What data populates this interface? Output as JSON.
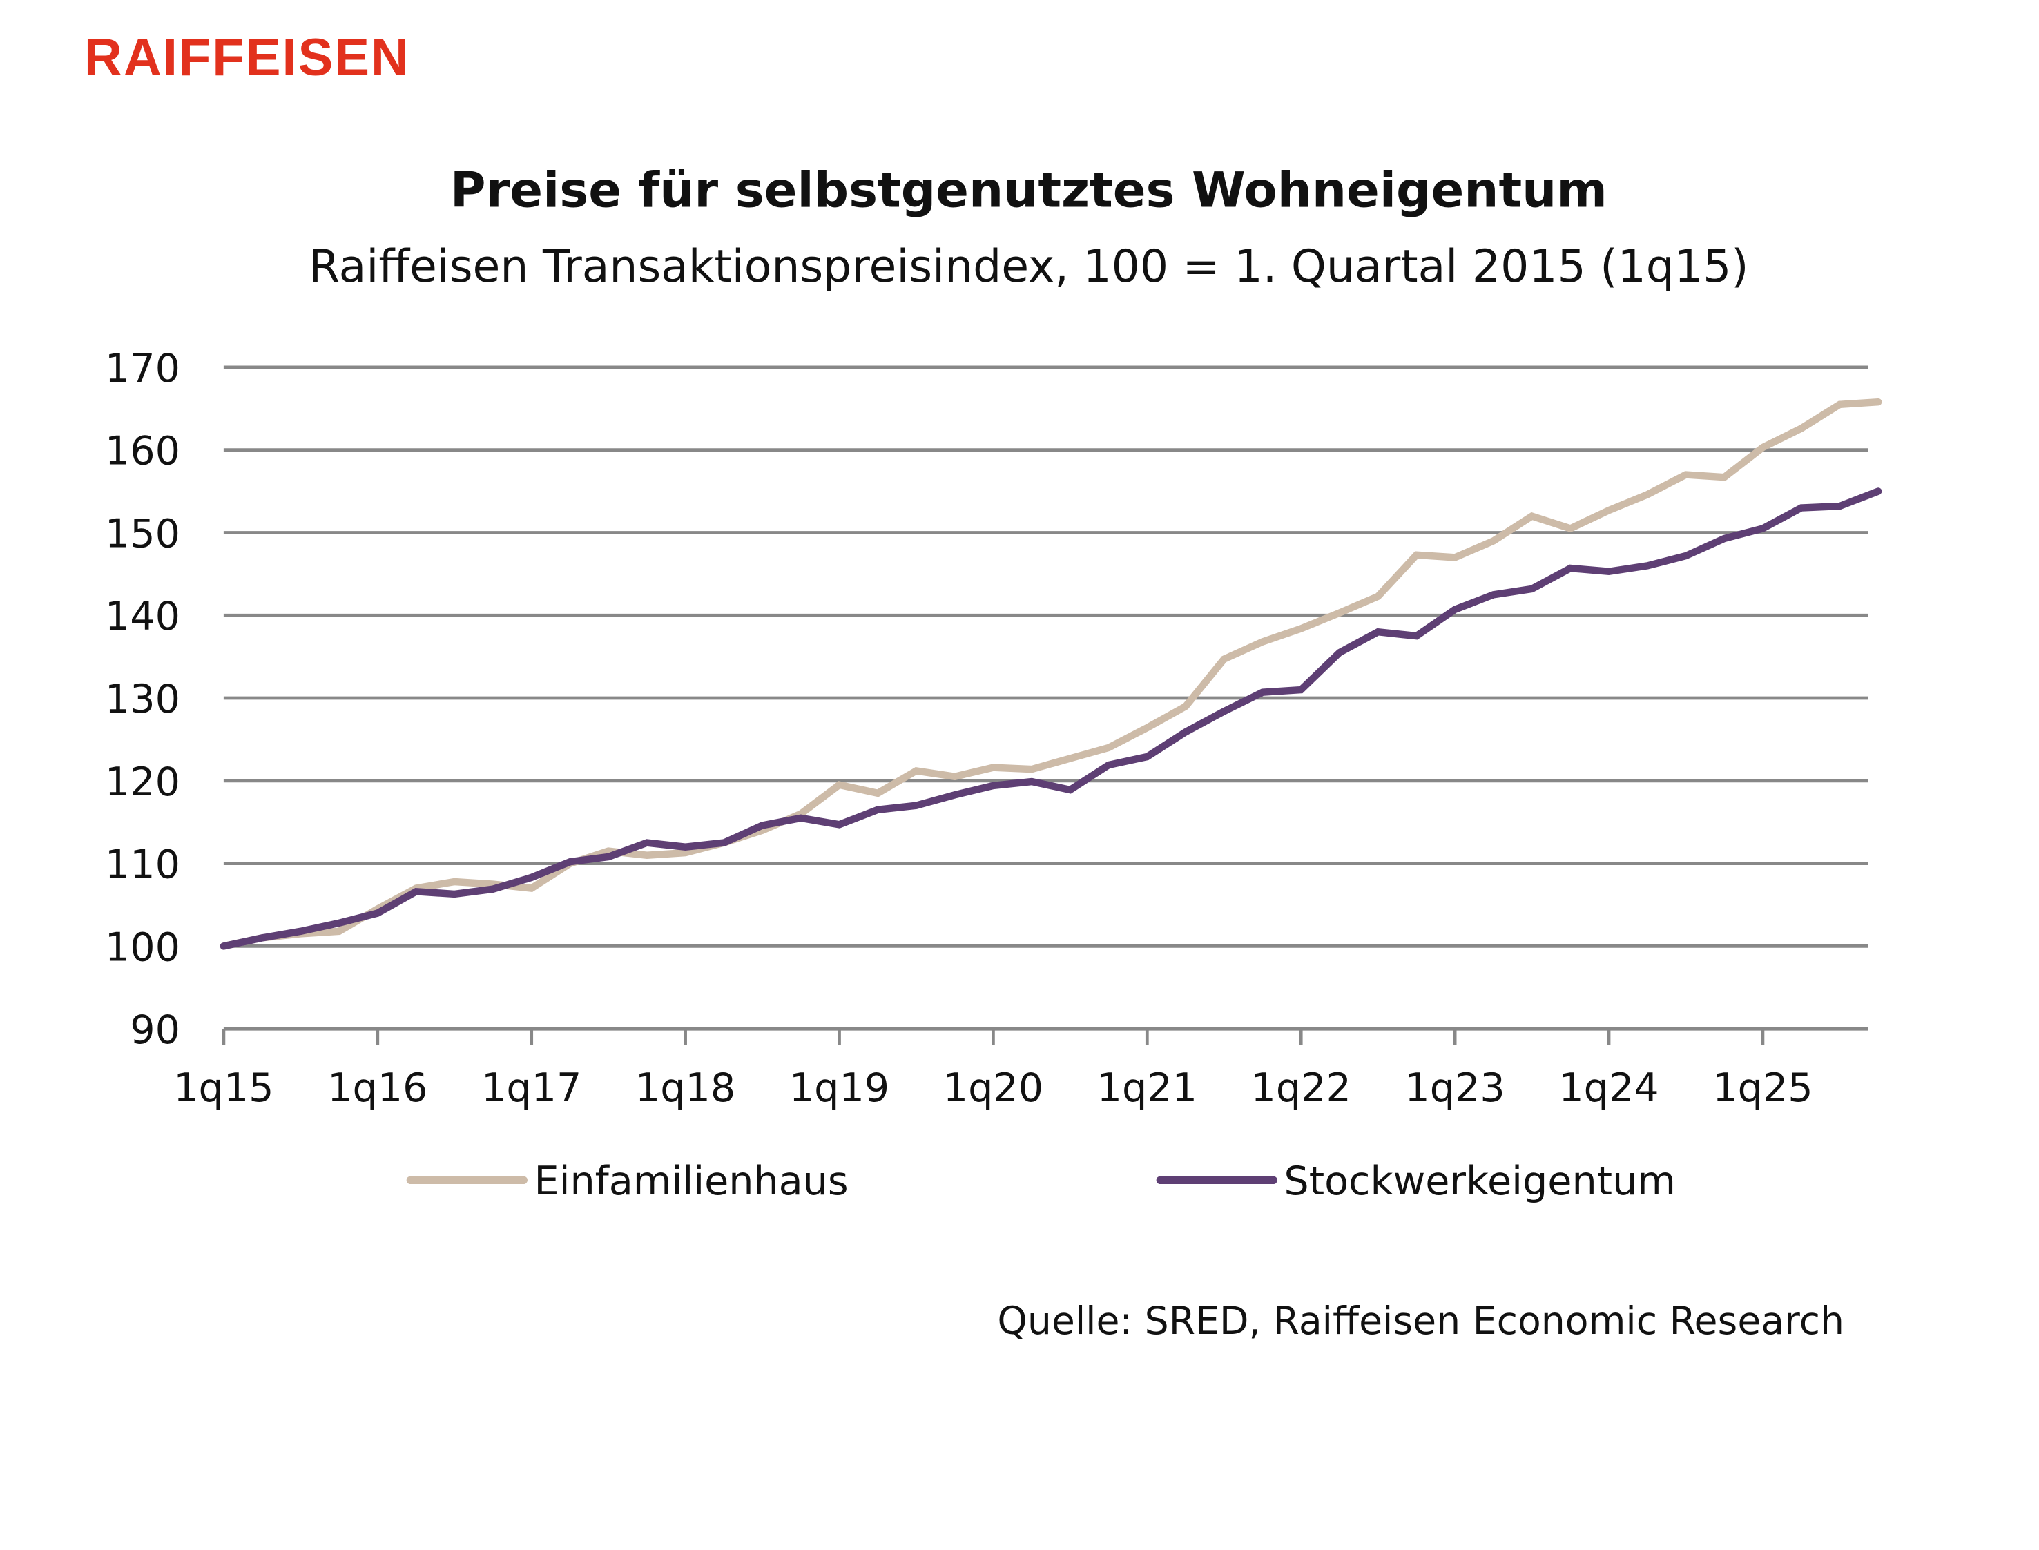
{
  "logo": {
    "text": "RAIFFEISEN",
    "color": "#e2311d"
  },
  "source": "Quelle: SRED, Raiffeisen Economic Research",
  "chart_data": {
    "type": "line",
    "title": "Preise für selbstgenutztes Wohneigentum",
    "subtitle": "Raiffeisen Transaktionspreisindex, 100 = 1. Quartal 2015 (1q15)",
    "xlabel": "",
    "ylabel": "",
    "ylim": [
      90,
      170
    ],
    "yticks": [
      "90",
      "100",
      "110",
      "120",
      "130",
      "140",
      "150",
      "160",
      "170"
    ],
    "xticks": [
      "1q15",
      "1q16",
      "1q17",
      "1q18",
      "1q19",
      "1q20",
      "1q21",
      "1q22",
      "1q23",
      "1q24",
      "1q25"
    ],
    "grid": true,
    "legend": "bottom",
    "x": [
      "1q15",
      "2q15",
      "3q15",
      "4q15",
      "1q16",
      "2q16",
      "3q16",
      "4q16",
      "1q17",
      "2q17",
      "3q17",
      "4q17",
      "1q18",
      "2q18",
      "3q18",
      "4q18",
      "1q19",
      "2q19",
      "3q19",
      "4q19",
      "1q20",
      "2q20",
      "3q20",
      "4q20",
      "1q21",
      "2q21",
      "3q21",
      "4q21",
      "1q22",
      "2q22",
      "3q22",
      "4q22",
      "1q23",
      "2q23",
      "3q23",
      "4q23",
      "1q24",
      "2q24",
      "3q24",
      "4q24",
      "1q25",
      "2q25",
      "3q25",
      "4q25"
    ],
    "series": [
      {
        "name": "Einfamilienhaus",
        "color": "#cdbba8",
        "values": [
          100,
          101,
          101.5,
          101.8,
          104.5,
          107,
          107.8,
          107.5,
          107,
          110,
          111.5,
          111,
          111.3,
          112.5,
          114,
          116,
          119.5,
          118.5,
          121.2,
          120.5,
          121.6,
          121.4,
          122.7,
          124,
          126.4,
          129,
          134.7,
          136.8,
          138.4,
          140.3,
          142.3,
          147.3,
          147,
          149,
          152,
          150.5,
          152.7,
          154.6,
          157,
          156.7,
          160.3,
          162.6,
          165.5,
          165.8
        ]
      },
      {
        "name": "Stockwerkeigentum",
        "color": "#5e3f74",
        "values": [
          100,
          101,
          101.8,
          102.8,
          104,
          106.6,
          106.3,
          106.9,
          108.3,
          110.2,
          110.8,
          112.5,
          112,
          112.5,
          114.6,
          115.5,
          114.7,
          116.5,
          117,
          118.3,
          119.4,
          119.9,
          118.9,
          121.9,
          122.9,
          125.9,
          128.4,
          130.7,
          131,
          135.5,
          138,
          137.5,
          140.7,
          142.5,
          143.2,
          145.7,
          145.3,
          146,
          147.2,
          149.3,
          150.5,
          153,
          153.2,
          155
        ]
      }
    ]
  }
}
